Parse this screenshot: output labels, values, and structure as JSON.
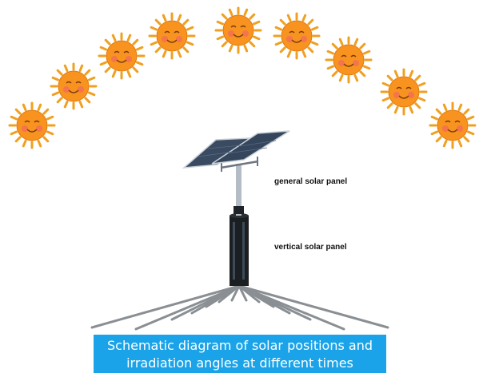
{
  "labels": {
    "general_panel": "general solar panel",
    "vertical_panel": "vertical solar panel"
  },
  "caption": {
    "line1": "Schematic diagram of solar positions and",
    "line2": "irradiation angles at different times"
  },
  "suns": {
    "count": 9,
    "icon": "smiling-sun-icon"
  },
  "colors": {
    "sun_body": "#f7931e",
    "sun_rays": "#f0a020",
    "panel": "#3a4a60",
    "pole": "#9aa6b2",
    "column": "#1c1f22",
    "ground_lines": "#8a8f94",
    "caption_bg": "#1aa3e8"
  }
}
